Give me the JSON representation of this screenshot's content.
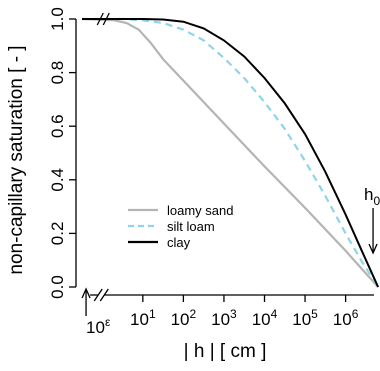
{
  "chart_data": {
    "type": "line",
    "xlabel": "| h | [ cm ]",
    "ylabel": "non-capillary saturation [ - ]",
    "x_scale": "log10",
    "xlim_log10": [
      -0.5,
      6.7
    ],
    "ylim": [
      0,
      1
    ],
    "x_tick_labels": [
      {
        "base": "10",
        "exp": "1",
        "value": 1
      },
      {
        "base": "10",
        "exp": "2",
        "value": 2
      },
      {
        "base": "10",
        "exp": "3",
        "value": 3
      },
      {
        "base": "10",
        "exp": "4",
        "value": 4
      },
      {
        "base": "10",
        "exp": "5",
        "value": 5
      },
      {
        "base": "10",
        "exp": "6",
        "value": 6
      }
    ],
    "x_break_label": {
      "base": "10",
      "exp": "ε"
    },
    "y_ticks": [
      0,
      0.2,
      0.4,
      0.6,
      0.8,
      1
    ],
    "y_tick_labels": [
      "0.0",
      "0.2",
      "0.4",
      "0.6",
      "0.8",
      "1.0"
    ],
    "axis_breaks": true,
    "grid": false,
    "legend_position": "lower-left",
    "annotation": {
      "base": "h",
      "sub": "0",
      "at_log10": 6.8
    },
    "series": [
      {
        "name": "loamy sand",
        "color": "#b4b4b4",
        "dash": "solid",
        "x_log10": [
          -0.5,
          0.3,
          0.6,
          0.9,
          1.2,
          1.5,
          2,
          3,
          4,
          5,
          6,
          6.8
        ],
        "y": [
          1.0,
          0.995,
          0.985,
          0.96,
          0.91,
          0.85,
          0.77,
          0.61,
          0.45,
          0.295,
          0.135,
          0.0
        ]
      },
      {
        "name": "silt loam",
        "color": "#8fd4ea",
        "dash": "dashed",
        "x_log10": [
          -0.5,
          0.5,
          1,
          1.5,
          2,
          2.5,
          3,
          3.5,
          4,
          4.5,
          5,
          5.5,
          6,
          6.4,
          6.8
        ],
        "y": [
          1.0,
          1.0,
          0.995,
          0.985,
          0.96,
          0.92,
          0.855,
          0.78,
          0.69,
          0.59,
          0.47,
          0.34,
          0.2,
          0.095,
          0.0
        ]
      },
      {
        "name": "clay",
        "color": "#000000",
        "dash": "solid",
        "x_log10": [
          -0.5,
          1,
          1.5,
          2,
          2.5,
          3,
          3.5,
          4,
          4.5,
          5,
          5.5,
          6,
          6.4,
          6.8
        ],
        "y": [
          1.0,
          1.0,
          0.998,
          0.99,
          0.965,
          0.92,
          0.86,
          0.78,
          0.685,
          0.57,
          0.43,
          0.27,
          0.135,
          0.0
        ]
      }
    ]
  }
}
